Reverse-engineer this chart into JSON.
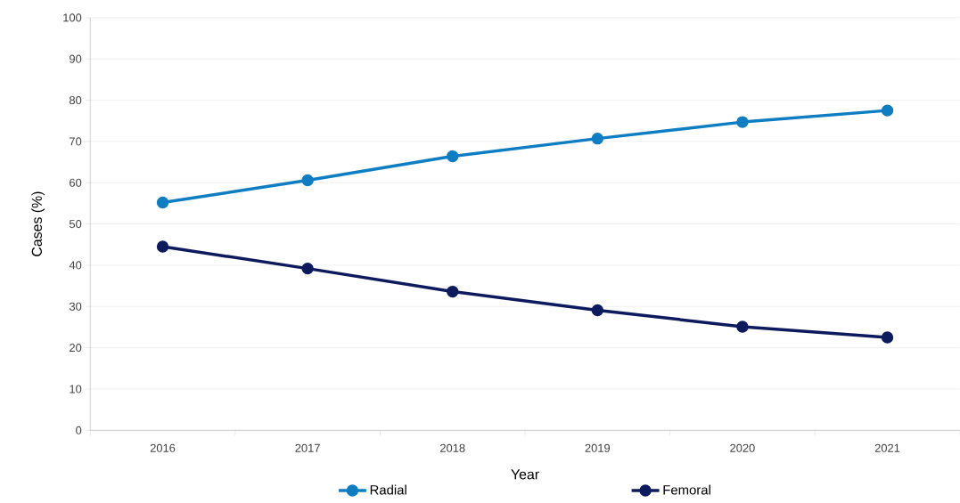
{
  "chart_data": {
    "type": "line",
    "xlabel": "Year",
    "ylabel": "Cases (%)",
    "categories": [
      "2016",
      "2017",
      "2018",
      "2019",
      "2020",
      "2021"
    ],
    "series": [
      {
        "name": "Radial",
        "color": "#0e7dc2",
        "values": [
          55.2,
          60.6,
          66.4,
          70.7,
          74.7,
          77.5
        ]
      },
      {
        "name": "Femoral",
        "color": "#0d1a5e",
        "values": [
          44.5,
          39.2,
          33.6,
          29.1,
          25.1,
          22.5
        ]
      }
    ],
    "ylim": [
      0,
      100
    ],
    "yticks": [
      0,
      10,
      20,
      30,
      40,
      50,
      60,
      70,
      80,
      90,
      100
    ],
    "grid": "y",
    "legend": "bottom",
    "marker": "circle",
    "line_style": "solid"
  }
}
